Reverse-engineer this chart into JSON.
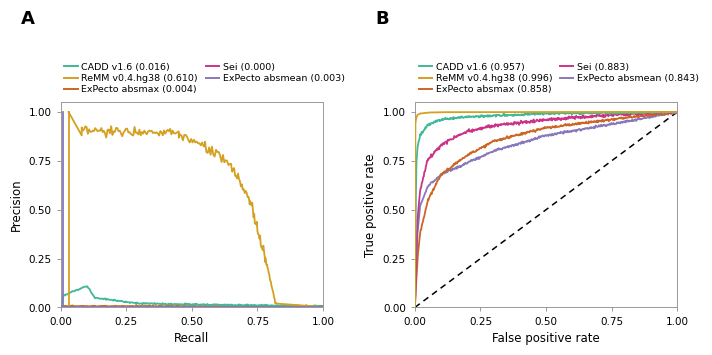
{
  "panel_A": {
    "title": "A",
    "xlabel": "Recall",
    "ylabel": "Precision"
  },
  "panel_B": {
    "title": "B",
    "xlabel": "False positive rate",
    "ylabel": "True positive rate"
  },
  "legend_A": [
    {
      "label": "CADD v1.6 (0.016)",
      "color": "#41b899"
    },
    {
      "label": "ReMM v0.4.hg38 (0.610)",
      "color": "#d4a020"
    },
    {
      "label": "ExPecto absmax (0.004)",
      "color": "#cc6622"
    },
    {
      "label": "Sei (0.000)",
      "color": "#cc3388"
    },
    {
      "label": "ExPecto absmean (0.003)",
      "color": "#8877bb"
    }
  ],
  "legend_B": [
    {
      "label": "CADD v1.6 (0.957)",
      "color": "#41b899"
    },
    {
      "label": "ReMM v0.4.hg38 (0.996)",
      "color": "#d4a020"
    },
    {
      "label": "ExPecto absmax (0.858)",
      "color": "#cc6622"
    },
    {
      "label": "Sei (0.883)",
      "color": "#cc3388"
    },
    {
      "label": "ExPecto absmean (0.843)",
      "color": "#8877bb"
    }
  ],
  "colors": {
    "cadd": "#41b899",
    "remm": "#d4a020",
    "expecto_absmax": "#cc6622",
    "sei": "#cc3388",
    "expecto_absmean": "#8877bb"
  },
  "linewidth": 1.3
}
